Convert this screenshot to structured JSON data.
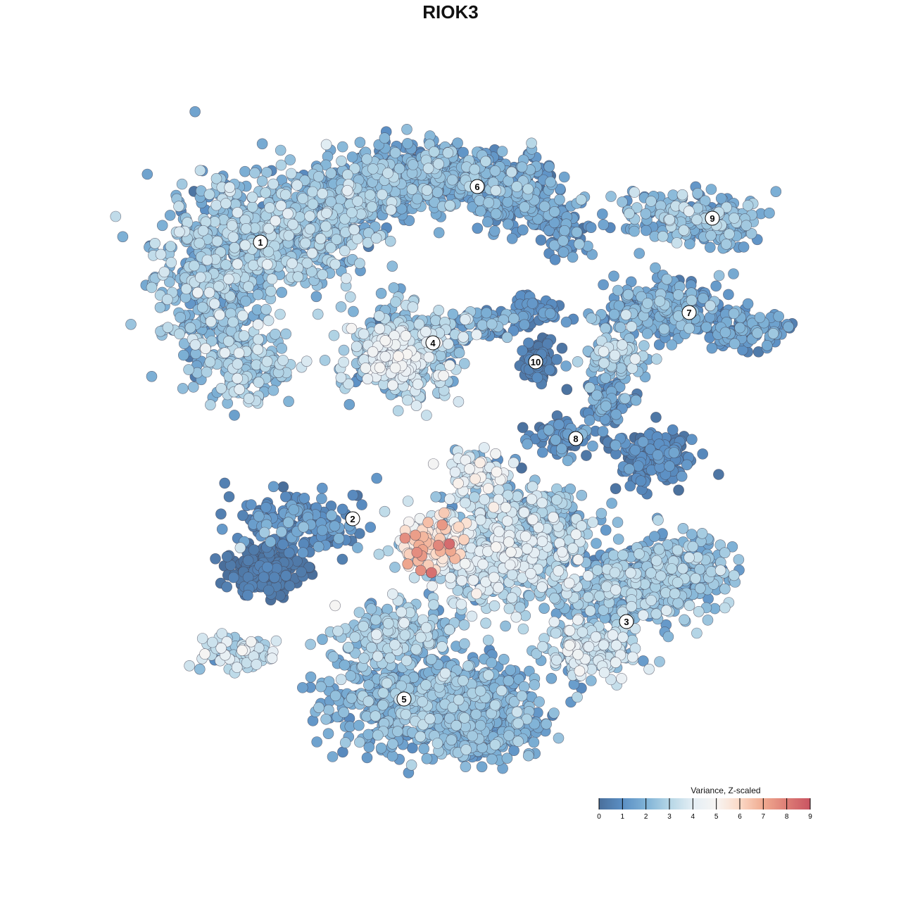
{
  "chart_data": {
    "type": "scatter",
    "title": "RIOK3",
    "xlabel": "",
    "ylabel": "",
    "grid": false,
    "legend": {
      "title": "Variance, Z-scaled",
      "placement": "bottom-right",
      "ticks": [
        "0",
        "1",
        "2",
        "3",
        "4",
        "5",
        "6",
        "7",
        "8",
        "9"
      ],
      "range": [
        0,
        9
      ],
      "colors": [
        "#4a6f9b",
        "#5b8fc4",
        "#7fb2d6",
        "#b5d6e6",
        "#e4eef4",
        "#f7f5f3",
        "#fbd9c6",
        "#f0aa90",
        "#dd7d76",
        "#c95462"
      ]
    },
    "clusters": [
      {
        "label": "1",
        "mean_value": 2.2
      },
      {
        "label": "2",
        "mean_value": 0.8
      },
      {
        "label": "3",
        "mean_value": 2.4
      },
      {
        "label": "4",
        "mean_value": 2.6
      },
      {
        "label": "5",
        "mean_value": 1.9
      },
      {
        "label": "6",
        "mean_value": 1.7
      },
      {
        "label": "7",
        "mean_value": 1.5
      },
      {
        "label": "8",
        "mean_value": 0.8
      },
      {
        "label": "9",
        "mean_value": 2.0
      },
      {
        "label": "10",
        "mean_value": 0.3
      }
    ]
  }
}
